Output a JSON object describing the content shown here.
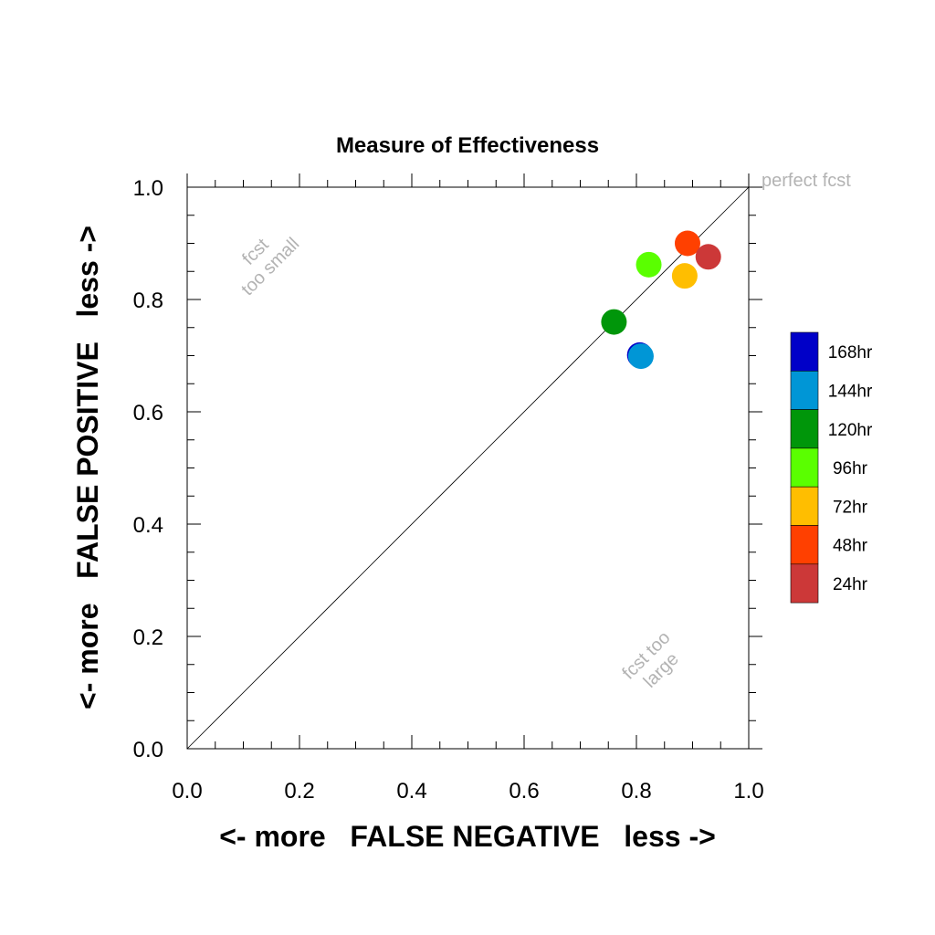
{
  "chart_data": {
    "type": "scatter",
    "title": "Measure of Effectiveness",
    "xlabel": "<- more   FALSE NEGATIVE   less ->",
    "ylabel": "<- more   FALSE POSITIVE   less ->",
    "xlim": [
      0,
      1
    ],
    "ylim": [
      0,
      1
    ],
    "xticks": [
      "0.0",
      "0.2",
      "0.4",
      "0.6",
      "0.8",
      "1.0"
    ],
    "yticks": [
      "0.0",
      "0.2",
      "0.4",
      "0.6",
      "0.8",
      "1.0"
    ],
    "grid": false,
    "reference_line": "diagonal y = x",
    "legend_placement": "right",
    "annotations": {
      "perfect": "perfect fcst",
      "small_line1": "fcst",
      "small_line2": "too small",
      "large_line1": "fcst too",
      "large_line2": "large"
    },
    "series": [
      {
        "name": "168hr",
        "color": "#0000c8",
        "x": 0.806,
        "y": 0.701
      },
      {
        "name": "144hr",
        "color": "#0096d6",
        "x": 0.808,
        "y": 0.699
      },
      {
        "name": "120hr",
        "color": "#00960a",
        "x": 0.76,
        "y": 0.76
      },
      {
        "name": "96hr",
        "color": "#5aff00",
        "x": 0.822,
        "y": 0.862
      },
      {
        "name": "72hr",
        "color": "#ffbe00",
        "x": 0.886,
        "y": 0.842
      },
      {
        "name": "48hr",
        "color": "#ff4000",
        "x": 0.891,
        "y": 0.9
      },
      {
        "name": "24hr",
        "color": "#cc3838",
        "x": 0.928,
        "y": 0.876
      }
    ]
  }
}
